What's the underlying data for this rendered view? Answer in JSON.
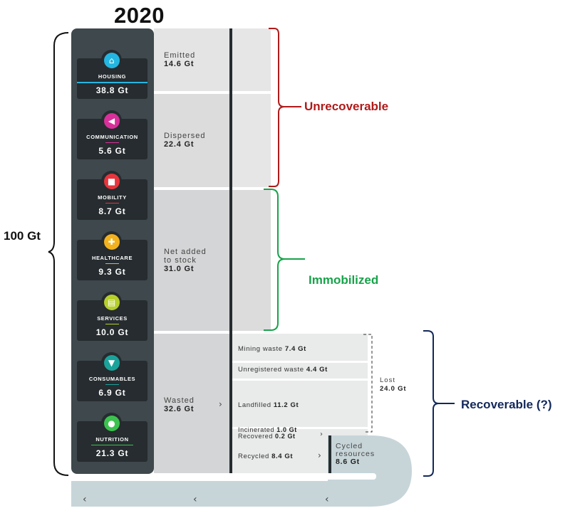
{
  "title": "2020",
  "total": {
    "label": "100 Gt"
  },
  "sectors": [
    {
      "name": "HOUSING",
      "value": "38.8 Gt",
      "color": "#24b6e0",
      "icon": "house-icon"
    },
    {
      "name": "COMMUNICATION",
      "value": "5.6 Gt",
      "color": "#d8309a",
      "icon": "megaphone-icon"
    },
    {
      "name": "MOBILITY",
      "value": "8.7 Gt",
      "color": "#e8353d",
      "icon": "truck-icon"
    },
    {
      "name": "HEALTHCARE",
      "value": "9.3 Gt",
      "color": "#f3b21d",
      "icon": "medical-cross-icon"
    },
    {
      "name": "SERVICES",
      "value": "10.0 Gt",
      "color": "#b6cf2a",
      "icon": "chat-bubble-icon"
    },
    {
      "name": "CONSUMABLES",
      "value": "6.9 Gt",
      "color": "#1aa39a",
      "icon": "tshirt-icon"
    },
    {
      "name": "NUTRITION",
      "value": "21.3 Gt",
      "color": "#3cc24e",
      "icon": "apple-icon"
    }
  ],
  "flows": {
    "emitted": {
      "label": "Emitted",
      "value": "14.6 Gt"
    },
    "dispersed": {
      "label": "Dispersed",
      "value": "22.4 Gt"
    },
    "stock": {
      "label1": "Net added",
      "label2": "to stock",
      "value": "31.0 Gt"
    },
    "wasted": {
      "label": "Wasted",
      "value": "32.6 Gt"
    }
  },
  "waste": {
    "mining": {
      "label": "Mining waste",
      "value": "7.4 Gt"
    },
    "unregistered": {
      "label": "Unregistered waste",
      "value": "4.4 Gt"
    },
    "landfilled": {
      "label": "Landfilled",
      "value": "11.2 Gt"
    },
    "incinerated": {
      "label": "Incinerated",
      "value": "1.0 Gt"
    },
    "recovered": {
      "label": "Recovered",
      "value": "0.2 Gt"
    },
    "recycled": {
      "label": "Recycled",
      "value": "8.4 Gt"
    }
  },
  "lost": {
    "label": "Lost",
    "value": "24.0 Gt"
  },
  "cycled": {
    "label1": "Cycled",
    "label2": "resources",
    "value": "8.6 Gt"
  },
  "categories": {
    "unrecoverable": {
      "label": "Unrecoverable",
      "color": "#b01a1a"
    },
    "immobilized": {
      "label": "Immobilized",
      "color": "#17a34a"
    },
    "recoverable": {
      "label": "Recoverable (?)",
      "color": "#13285a"
    }
  }
}
